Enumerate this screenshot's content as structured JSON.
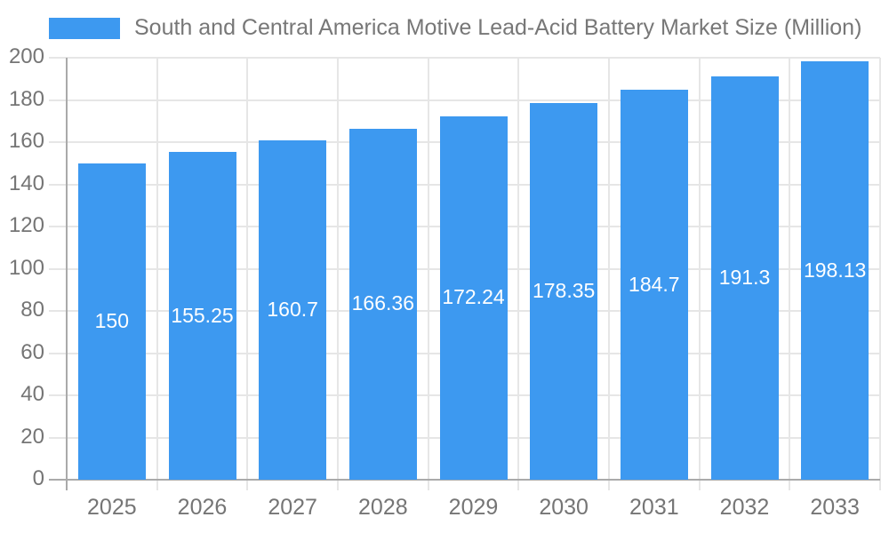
{
  "legend": {
    "label": "South and Central America Motive Lead-Acid Battery Market Size (Million)",
    "swatch_color": "#3d99f0"
  },
  "chart_data": {
    "type": "bar",
    "title": "South and Central America Motive Lead-Acid Battery Market Size (Million)",
    "categories": [
      "2025",
      "2026",
      "2027",
      "2028",
      "2029",
      "2030",
      "2031",
      "2032",
      "2033"
    ],
    "values": [
      150,
      155.25,
      160.7,
      166.36,
      172.24,
      178.35,
      184.7,
      191.3,
      198.13
    ],
    "value_labels": [
      "150",
      "155.25",
      "160.7",
      "166.36",
      "172.24",
      "178.35",
      "184.7",
      "191.3",
      "198.13"
    ],
    "xlabel": "",
    "ylabel": "",
    "ylim": [
      0,
      200
    ],
    "ytick_interval": 20,
    "ytick_labels": [
      "0",
      "20",
      "40",
      "60",
      "80",
      "100",
      "120",
      "140",
      "160",
      "180",
      "200"
    ],
    "grid": true,
    "legend_position": "top-left",
    "colors": {
      "bar": "#3d99f0",
      "value_label": "#ffffff",
      "axis": "#aaaaaa",
      "grid": "#e6e6e6",
      "tick_text": "#757575",
      "title_text": "#777777",
      "background": "#ffffff"
    }
  }
}
